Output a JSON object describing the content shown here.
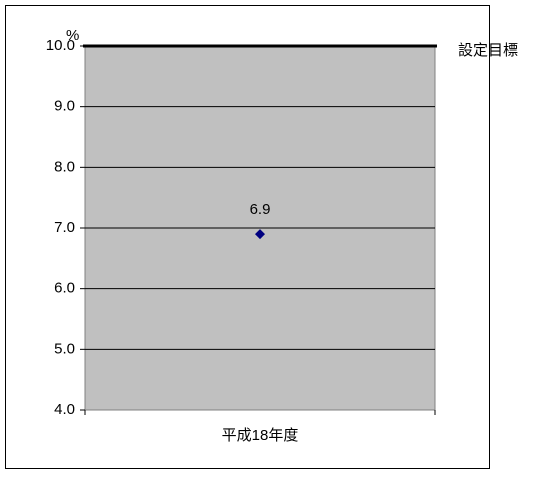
{
  "chart_data": {
    "type": "scatter",
    "ylabel": "%",
    "ylim": [
      4.0,
      10.0
    ],
    "yticks": [
      "4.0",
      "5.0",
      "6.0",
      "7.0",
      "8.0",
      "9.0",
      "10.0"
    ],
    "categories": [
      "平成18年度"
    ],
    "series": [
      {
        "values": [
          6.9
        ],
        "labels": [
          "6.9"
        ]
      }
    ],
    "target": {
      "value": 10.0,
      "label": "設定目標"
    },
    "grid": true,
    "colors": {
      "plot_bg": "#c0c0c0",
      "marker": "#000080",
      "target_line": "#000000",
      "grid": "#000000"
    }
  }
}
